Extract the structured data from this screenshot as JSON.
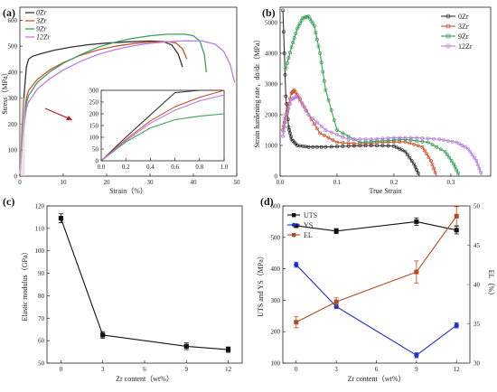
{
  "chart_data": [
    {
      "panel": "(a)",
      "type": "line",
      "xlabel": "Strain（%）",
      "ylabel": "Stress（MPa）",
      "xlim": [
        0,
        50
      ],
      "ylim": [
        0,
        650
      ],
      "xticks": [
        0,
        10,
        20,
        30,
        40,
        50
      ],
      "yticks": [
        0,
        100,
        200,
        300,
        400,
        500,
        600
      ],
      "legend_position": "top-left",
      "series": [
        {
          "name": "0Zr",
          "color": "#333333",
          "x": [
            0,
            0.5,
            1,
            1.5,
            2,
            3,
            5,
            8,
            12,
            16,
            20,
            25,
            30,
            33,
            35,
            36.5,
            37.5
          ],
          "y": [
            0,
            180,
            320,
            420,
            450,
            462,
            472,
            485,
            497,
            506,
            512,
            517,
            520,
            518,
            505,
            470,
            420
          ]
        },
        {
          "name": "3Zr",
          "color": "#d0532f",
          "x": [
            0,
            0.5,
            1,
            1.5,
            2,
            4,
            7,
            10,
            14,
            18,
            22,
            26,
            30,
            34,
            36,
            37.5,
            38.5
          ],
          "y": [
            0,
            120,
            230,
            300,
            330,
            372,
            410,
            437,
            465,
            486,
            500,
            510,
            516,
            518,
            512,
            490,
            450
          ]
        },
        {
          "name": "9Zr",
          "color": "#3aa05a",
          "x": [
            0,
            0.5,
            1,
            1.5,
            2,
            4,
            7,
            10,
            14,
            18,
            22,
            26,
            30,
            34,
            38,
            40,
            41.5,
            42.5,
            43
          ],
          "y": [
            0,
            120,
            220,
            280,
            310,
            360,
            402,
            434,
            467,
            496,
            516,
            530,
            540,
            546,
            546,
            540,
            520,
            470,
            400
          ]
        },
        {
          "name": "12Zr",
          "color": "#b57fe0",
          "x": [
            0,
            0.5,
            1,
            1.5,
            2,
            4,
            7,
            10,
            14,
            18,
            22,
            26,
            30,
            34,
            38,
            42,
            45,
            47,
            48.5,
            49.5
          ],
          "y": [
            0,
            110,
            200,
            260,
            285,
            335,
            376,
            408,
            442,
            468,
            487,
            501,
            511,
            517,
            521,
            520,
            508,
            480,
            430,
            360
          ]
        }
      ],
      "inset": {
        "xlim": [
          0.0,
          1.0
        ],
        "ylim": [
          0,
          300
        ],
        "xticks": [
          "0.0",
          "0.2",
          "0.4",
          "0.6",
          "0.8",
          "1.0"
        ],
        "yticks": [
          0,
          50,
          100,
          150,
          200,
          250,
          300
        ],
        "series": [
          {
            "name": "0Zr",
            "x": [
              0,
              0.2,
              0.4,
              0.6,
              0.8,
              1.0
            ],
            "y": [
              0,
              100,
              195,
              290,
              300,
              300
            ]
          },
          {
            "name": "3Zr",
            "x": [
              0,
              0.2,
              0.4,
              0.6,
              0.8,
              1.0
            ],
            "y": [
              0,
              90,
              170,
              230,
              270,
              300
            ]
          },
          {
            "name": "9Zr",
            "x": [
              0,
              0.2,
              0.4,
              0.6,
              0.8,
              1.0
            ],
            "y": [
              0,
              80,
              140,
              175,
              190,
              200
            ]
          },
          {
            "name": "12Zr",
            "x": [
              0,
              0.2,
              0.4,
              0.6,
              0.8,
              1.0
            ],
            "y": [
              0,
              85,
              160,
              215,
              255,
              280
            ]
          }
        ]
      }
    },
    {
      "panel": "(b)",
      "type": "line",
      "xlabel": "True Strain",
      "ylabel": "Strain hardening rate，dσ/dε（MPa）",
      "xlim": [
        0,
        0.37
      ],
      "ylim": [
        0,
        5500
      ],
      "xticks": [
        "0.0",
        "0.1",
        "0.2",
        "0.3"
      ],
      "yticks": [
        0,
        1000,
        2000,
        3000,
        4000,
        5000
      ],
      "legend_position": "top-right",
      "series": [
        {
          "name": "0Zr",
          "color": "#333333",
          "x": [
            0.005,
            0.01,
            0.015,
            0.02,
            0.03,
            0.05,
            0.08,
            0.12,
            0.16,
            0.2,
            0.22,
            0.235,
            0.245
          ],
          "y": [
            5400,
            2600,
            1600,
            1200,
            1000,
            950,
            950,
            980,
            1000,
            980,
            800,
            400,
            0
          ]
        },
        {
          "name": "3Zr",
          "color": "#d0532f",
          "x": [
            0.005,
            0.01,
            0.02,
            0.025,
            0.035,
            0.05,
            0.07,
            0.1,
            0.14,
            0.18,
            0.22,
            0.25,
            0.265,
            0.275
          ],
          "y": [
            1500,
            2000,
            2700,
            2800,
            2500,
            2000,
            1400,
            1100,
            1050,
            1100,
            1120,
            950,
            500,
            0
          ]
        },
        {
          "name": "9Zr",
          "color": "#3aa05a",
          "x": [
            0.01,
            0.02,
            0.03,
            0.04,
            0.05,
            0.06,
            0.07,
            0.08,
            0.1,
            0.14,
            0.18,
            0.22,
            0.26,
            0.29,
            0.305,
            0.315
          ],
          "y": [
            3500,
            4200,
            4800,
            5150,
            5200,
            4900,
            4000,
            2800,
            1500,
            1100,
            1150,
            1200,
            1100,
            800,
            400,
            0
          ]
        },
        {
          "name": "12Zr",
          "color": "#b57fe0",
          "x": [
            0.005,
            0.01,
            0.02,
            0.03,
            0.05,
            0.08,
            0.12,
            0.16,
            0.2,
            0.24,
            0.28,
            0.31,
            0.33,
            0.345,
            0.355
          ],
          "y": [
            1300,
            1900,
            2500,
            2600,
            2000,
            1500,
            1200,
            1200,
            1250,
            1250,
            1200,
            1100,
            900,
            500,
            0
          ]
        }
      ]
    },
    {
      "panel": "(c)",
      "type": "line",
      "xlabel": "Zr content（wt%）",
      "ylabel": "Elastic modulus（GPa）",
      "xlim": [
        -1,
        13
      ],
      "ylim": [
        50,
        120
      ],
      "xticks": [
        0,
        3,
        6,
        9,
        12
      ],
      "yticks": [
        50,
        60,
        70,
        80,
        90,
        100,
        110,
        120
      ],
      "series": [
        {
          "name": "",
          "color": "#111111",
          "x": [
            0,
            3,
            9,
            12
          ],
          "y": [
            114.5,
            62.5,
            57.5,
            56.0
          ],
          "err": [
            2.0,
            1.5,
            1.5,
            1.2
          ]
        }
      ]
    },
    {
      "panel": "(d)",
      "type": "line",
      "xlabel": "Zr content（wt%）",
      "ylabel": "UTS and YS（MPa）",
      "ylabel_right": "EL（%）",
      "xlim": [
        -1,
        13
      ],
      "ylim": [
        100,
        600
      ],
      "ylim_right": [
        30,
        50
      ],
      "xticks": [
        0,
        3,
        6,
        9,
        12
      ],
      "yticks": [
        100,
        200,
        300,
        400,
        500,
        600
      ],
      "yticks_right": [
        30,
        35,
        40,
        45,
        50
      ],
      "legend_position": "top-left",
      "series": [
        {
          "name": "UTS",
          "color": "#111111",
          "marker": "square",
          "axis": "left",
          "x": [
            0,
            3,
            9,
            12
          ],
          "y": [
            537,
            520,
            550,
            523
          ],
          "err": [
            5,
            8,
            12,
            12
          ]
        },
        {
          "name": "YS",
          "color": "#2030c8",
          "marker": "circle",
          "axis": "left",
          "x": [
            0,
            3,
            9,
            12
          ],
          "y": [
            413,
            280,
            125,
            220
          ],
          "err": [
            8,
            6,
            8,
            8
          ]
        },
        {
          "name": "EL",
          "color": "#b34a22",
          "marker": "square",
          "axis": "right",
          "x": [
            0,
            3,
            9,
            12
          ],
          "y": [
            35.2,
            37.8,
            41.6,
            48.7
          ],
          "err": [
            0.7,
            0.5,
            1.4,
            1.2
          ]
        }
      ]
    }
  ]
}
